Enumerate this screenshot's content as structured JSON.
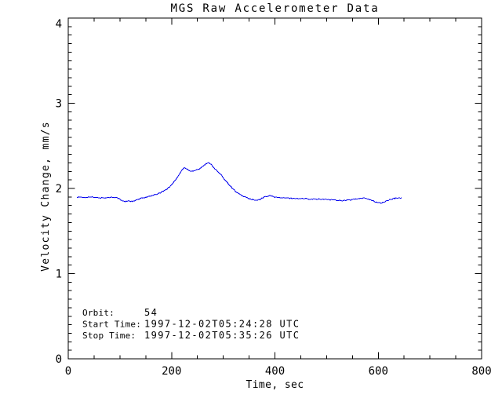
{
  "figure": {
    "background_color": "#ffffff",
    "axis_color": "#000000"
  },
  "chart_data": {
    "type": "line",
    "title": "MGS Raw Accelerometer Data",
    "xlabel": "Time, sec",
    "ylabel": "Velocity Change, mm/s",
    "xlim": [
      0,
      800
    ],
    "ylim": [
      0,
      4
    ],
    "xticks": [
      0,
      200,
      400,
      600,
      800
    ],
    "yticks": [
      0,
      1,
      2,
      3,
      4
    ],
    "x_minor_step": 50,
    "y_minor_step": 0.1,
    "grid": false,
    "legend": null,
    "series": [
      {
        "name": "velocity-change",
        "color": "#0000ee",
        "points": [
          [
            17,
            1.9
          ],
          [
            25,
            1.895
          ],
          [
            33,
            1.895
          ],
          [
            41,
            1.9
          ],
          [
            49,
            1.895
          ],
          [
            57,
            1.89
          ],
          [
            65,
            1.89
          ],
          [
            73,
            1.89
          ],
          [
            81,
            1.895
          ],
          [
            89,
            1.9
          ],
          [
            96,
            1.888
          ],
          [
            103,
            1.858
          ],
          [
            110,
            1.845
          ],
          [
            117,
            1.856
          ],
          [
            124,
            1.846
          ],
          [
            131,
            1.86
          ],
          [
            138,
            1.876
          ],
          [
            145,
            1.89
          ],
          [
            152,
            1.9
          ],
          [
            160,
            1.91
          ],
          [
            168,
            1.924
          ],
          [
            176,
            1.944
          ],
          [
            184,
            1.968
          ],
          [
            192,
            1.998
          ],
          [
            199,
            2.038
          ],
          [
            206,
            2.088
          ],
          [
            212,
            2.136
          ],
          [
            217,
            2.186
          ],
          [
            221,
            2.222
          ],
          [
            225,
            2.242
          ],
          [
            229,
            2.232
          ],
          [
            233,
            2.212
          ],
          [
            238,
            2.2
          ],
          [
            243,
            2.208
          ],
          [
            248,
            2.222
          ],
          [
            253,
            2.228
          ],
          [
            258,
            2.248
          ],
          [
            263,
            2.272
          ],
          [
            268,
            2.292
          ],
          [
            272,
            2.3
          ],
          [
            276,
            2.288
          ],
          [
            280,
            2.26
          ],
          [
            285,
            2.222
          ],
          [
            291,
            2.188
          ],
          [
            297,
            2.148
          ],
          [
            304,
            2.098
          ],
          [
            311,
            2.048
          ],
          [
            318,
            2.0
          ],
          [
            325,
            1.958
          ],
          [
            332,
            1.928
          ],
          [
            339,
            1.908
          ],
          [
            346,
            1.89
          ],
          [
            353,
            1.874
          ],
          [
            359,
            1.864
          ],
          [
            365,
            1.86
          ],
          [
            371,
            1.87
          ],
          [
            377,
            1.89
          ],
          [
            383,
            1.908
          ],
          [
            389,
            1.916
          ],
          [
            395,
            1.908
          ],
          [
            401,
            1.898
          ],
          [
            409,
            1.89
          ],
          [
            419,
            1.888
          ],
          [
            431,
            1.885
          ],
          [
            443,
            1.882
          ],
          [
            455,
            1.88
          ],
          [
            467,
            1.878
          ],
          [
            479,
            1.875
          ],
          [
            491,
            1.872
          ],
          [
            503,
            1.87
          ],
          [
            515,
            1.865
          ],
          [
            527,
            1.858
          ],
          [
            539,
            1.86
          ],
          [
            551,
            1.87
          ],
          [
            561,
            1.878
          ],
          [
            569,
            1.884
          ],
          [
            577,
            1.884
          ],
          [
            585,
            1.868
          ],
          [
            592,
            1.848
          ],
          [
            599,
            1.833
          ],
          [
            605,
            1.827
          ],
          [
            611,
            1.84
          ],
          [
            618,
            1.858
          ],
          [
            625,
            1.872
          ],
          [
            632,
            1.882
          ],
          [
            639,
            1.888
          ],
          [
            645,
            1.89
          ]
        ]
      }
    ],
    "annotations": [
      {
        "label": "Orbit:",
        "value": "54"
      },
      {
        "label": "Start Time:",
        "value": "1997-12-02T05:24:28 UTC"
      },
      {
        "label": "Stop Time:",
        "value": "1997-12-02T05:35:26 UTC"
      }
    ]
  }
}
